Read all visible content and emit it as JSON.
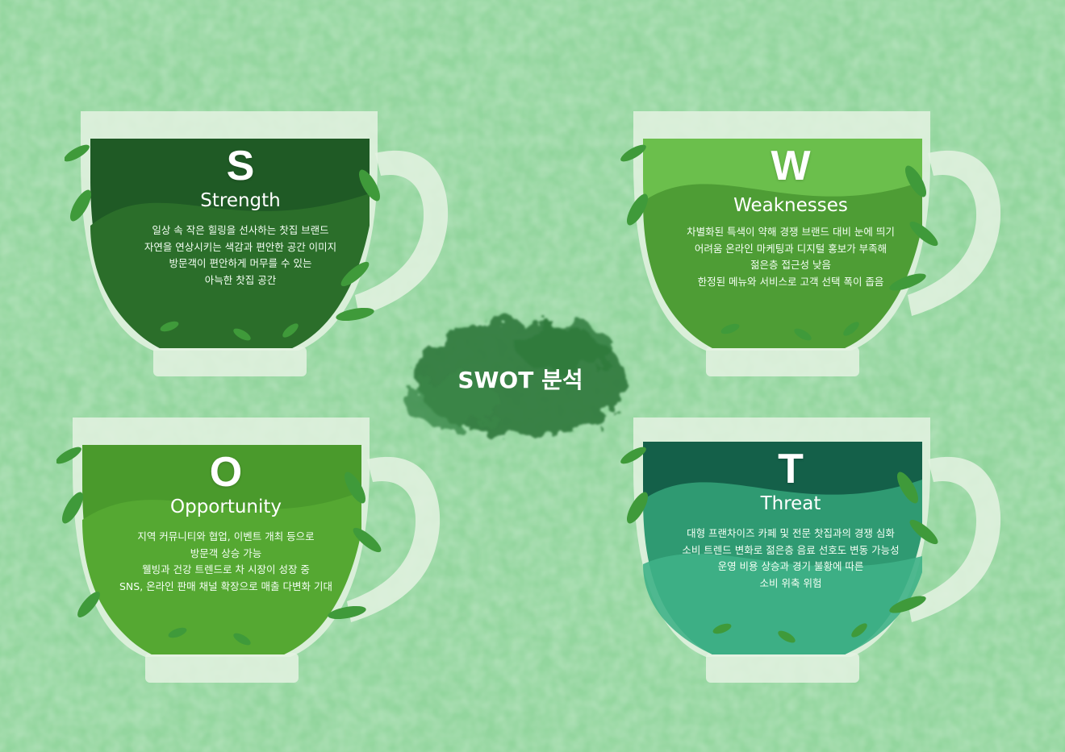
{
  "center_title": "SWOT 분석",
  "colors": {
    "background": "#8fd39a",
    "cup_rim": "#e4f2e2",
    "strength": "#2b6e2a",
    "weakness": "#4e9d35",
    "opportunity": "#55a832",
    "threat": "#2f9a72",
    "leaf": "#3f9a3a"
  },
  "quadrants": [
    {
      "letter": "S",
      "title": "Strength",
      "lines": [
        "일상 속 작은 힐링을 선사하는 찻집 브랜드",
        "자연을 연상시키는 색감과 편안한 공간 이미지",
        "방문객이 편안하게 머무를 수 있는",
        "아늑한 찻집 공간"
      ]
    },
    {
      "letter": "W",
      "title": "Weaknesses",
      "lines": [
        "차별화된 특색이 약해 경쟁 브랜드 대비 눈에 띄기",
        "어려움 온라인 마케팅과 디지털 홍보가 부족해",
        "젊은층 접근성 낮음",
        "한정된 메뉴와 서비스로 고객 선택 폭이 좁음"
      ]
    },
    {
      "letter": "O",
      "title": "Opportunity",
      "lines": [
        "지역 커뮤니티와 협업, 이벤트 개최 등으로",
        "방문객 상승 가능",
        "웰빙과 건강 트렌드로 차 시장이 성장 중",
        "SNS, 온라인 판매 채널 확장으로 매출 다변화 기대"
      ]
    },
    {
      "letter": "T",
      "title": "Threat",
      "lines": [
        "대형 프랜차이즈 카페 및 전문 찻집과의 경쟁 심화",
        "소비 트렌드 변화로 젊은층 음료 선호도 변동 가능성",
        "운영 비용 상승과 경기 불황에 따른",
        "소비 위축 위험"
      ]
    }
  ]
}
